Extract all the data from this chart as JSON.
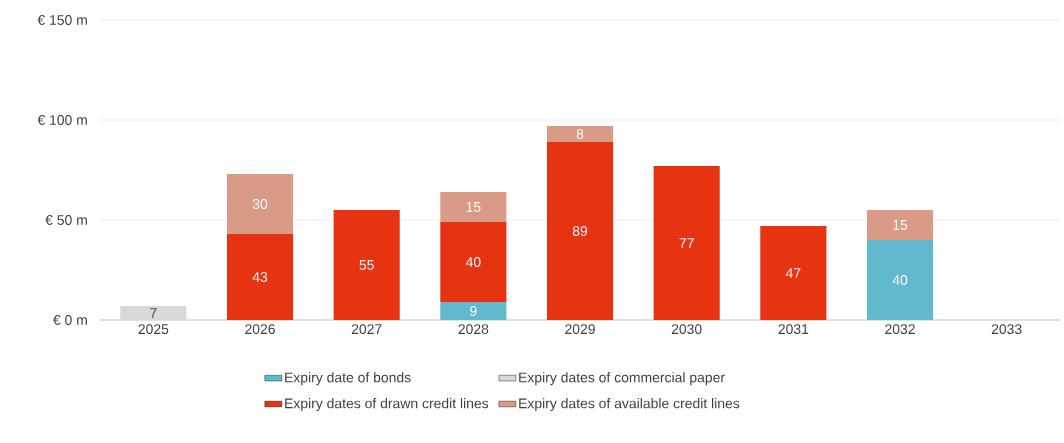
{
  "chart_data": {
    "type": "bar",
    "stacked": true,
    "categories": [
      "2025",
      "2026",
      "2027",
      "2028",
      "2029",
      "2030",
      "2031",
      "2032",
      "2033"
    ],
    "series": [
      {
        "name": "Expiry date of bonds",
        "color": "#62b8cc",
        "values": [
          null,
          null,
          null,
          9,
          null,
          null,
          null,
          40,
          null
        ]
      },
      {
        "name": "Expiry dates of commercial paper",
        "color": "#d9d9d9",
        "values": [
          7,
          null,
          null,
          null,
          null,
          null,
          null,
          null,
          null
        ]
      },
      {
        "name": "Expiry dates of drawn credit lines",
        "color": "#e63312",
        "values": [
          null,
          43,
          55,
          40,
          89,
          77,
          47,
          null,
          null
        ]
      },
      {
        "name": "Expiry dates of available credit lines",
        "color": "#d99a87",
        "values": [
          null,
          30,
          null,
          15,
          8,
          null,
          null,
          15,
          null
        ]
      }
    ],
    "ylim": [
      0,
      150
    ],
    "yticks": [
      {
        "value": 0,
        "label": "€ 0 m"
      },
      {
        "value": 50,
        "label": "€ 50 m"
      },
      {
        "value": 100,
        "label": "€ 100 m"
      },
      {
        "value": 150,
        "label": "€ 150 m"
      }
    ],
    "grid": "y",
    "legend": "bottom",
    "data_labels": true
  }
}
